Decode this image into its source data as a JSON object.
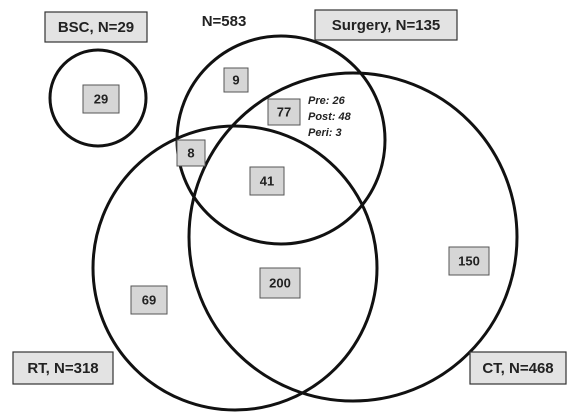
{
  "sets": [
    {
      "label": "BSC, N=29"
    },
    {
      "label": "Surgery, N=135"
    },
    {
      "label": "RT, N=318"
    },
    {
      "label": "CT, N=468"
    }
  ],
  "total": "N=583",
  "regions": [
    29,
    9,
    77,
    8,
    41,
    200,
    150,
    69
  ],
  "annotation": [
    "Pre: 26",
    "Post: 48",
    "Peri: 3"
  ]
}
